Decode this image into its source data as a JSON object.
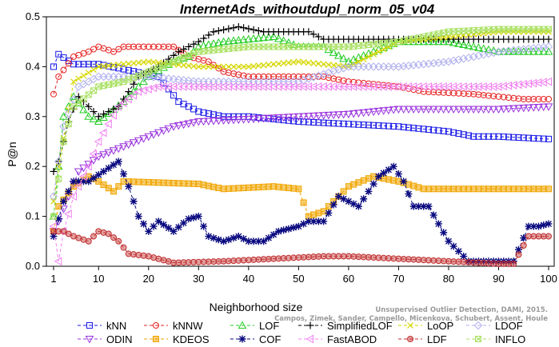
{
  "chart_data": {
    "type": "line",
    "title": "InternetAds_withoutdupl_norm_05_v04",
    "xlabel": "Neighborhood size",
    "ylabel": "P@n",
    "xlim": [
      1,
      100
    ],
    "ylim": [
      0,
      0.5
    ],
    "xticks": [
      1,
      10,
      20,
      30,
      40,
      50,
      60,
      70,
      80,
      90,
      100
    ],
    "yticks": [
      0.0,
      0.1,
      0.2,
      0.3,
      0.4,
      0.5
    ],
    "watermark_lines": [
      "Unsupervised Outlier Detection, DAMI, 2015.",
      "Campos, Zimek, Sander, Campello, Micenkova, Schubert, Assent, Houle"
    ],
    "legend_position": "bottom",
    "series": [
      {
        "name": "kNN",
        "color": "#1a1ae6",
        "marker": "square",
        "points": [
          [
            1,
            0.4
          ],
          [
            2,
            0.425
          ],
          [
            5,
            0.405
          ],
          [
            10,
            0.405
          ],
          [
            15,
            0.395
          ],
          [
            22,
            0.38
          ],
          [
            26,
            0.33
          ],
          [
            30,
            0.31
          ],
          [
            35,
            0.3
          ],
          [
            40,
            0.3
          ],
          [
            45,
            0.295
          ],
          [
            50,
            0.29
          ],
          [
            60,
            0.285
          ],
          [
            70,
            0.28
          ],
          [
            80,
            0.27
          ],
          [
            85,
            0.26
          ],
          [
            90,
            0.26
          ],
          [
            100,
            0.255
          ]
        ]
      },
      {
        "name": "kNNW",
        "color": "#e62020",
        "marker": "circle",
        "points": [
          [
            1,
            0.345
          ],
          [
            2,
            0.38
          ],
          [
            5,
            0.42
          ],
          [
            8,
            0.43
          ],
          [
            10,
            0.44
          ],
          [
            13,
            0.43
          ],
          [
            15,
            0.44
          ],
          [
            25,
            0.44
          ],
          [
            28,
            0.42
          ],
          [
            32,
            0.41
          ],
          [
            35,
            0.39
          ],
          [
            40,
            0.38
          ],
          [
            55,
            0.38
          ],
          [
            60,
            0.37
          ],
          [
            70,
            0.36
          ],
          [
            75,
            0.35
          ],
          [
            85,
            0.345
          ],
          [
            95,
            0.335
          ],
          [
            100,
            0.335
          ]
        ]
      },
      {
        "name": "LOF",
        "color": "#22cc22",
        "marker": "triangle",
        "points": [
          [
            1,
            0.1
          ],
          [
            2,
            0.2
          ],
          [
            3,
            0.3
          ],
          [
            5,
            0.34
          ],
          [
            8,
            0.3
          ],
          [
            10,
            0.29
          ],
          [
            15,
            0.33
          ],
          [
            20,
            0.38
          ],
          [
            25,
            0.41
          ],
          [
            28,
            0.42
          ],
          [
            30,
            0.44
          ],
          [
            35,
            0.45
          ],
          [
            45,
            0.46
          ],
          [
            50,
            0.44
          ],
          [
            55,
            0.44
          ],
          [
            60,
            0.41
          ],
          [
            65,
            0.43
          ],
          [
            70,
            0.45
          ],
          [
            80,
            0.45
          ],
          [
            90,
            0.43
          ],
          [
            100,
            0.43
          ]
        ]
      },
      {
        "name": "SimplifiedLOF",
        "color": "#000000",
        "marker": "plus",
        "points": [
          [
            1,
            0.19
          ],
          [
            2,
            0.21
          ],
          [
            4,
            0.29
          ],
          [
            6,
            0.34
          ],
          [
            8,
            0.32
          ],
          [
            10,
            0.3
          ],
          [
            14,
            0.32
          ],
          [
            18,
            0.38
          ],
          [
            22,
            0.4
          ],
          [
            26,
            0.43
          ],
          [
            30,
            0.45
          ],
          [
            33,
            0.47
          ],
          [
            38,
            0.48
          ],
          [
            43,
            0.47
          ],
          [
            48,
            0.47
          ],
          [
            52,
            0.47
          ],
          [
            55,
            0.455
          ],
          [
            70,
            0.455
          ],
          [
            80,
            0.455
          ],
          [
            100,
            0.455
          ]
        ]
      },
      {
        "name": "LoOP",
        "color": "#d6d600",
        "marker": "x",
        "points": [
          [
            1,
            0.13
          ],
          [
            2,
            0.2
          ],
          [
            5,
            0.37
          ],
          [
            10,
            0.4
          ],
          [
            20,
            0.41
          ],
          [
            30,
            0.4
          ],
          [
            40,
            0.4
          ],
          [
            50,
            0.41
          ],
          [
            60,
            0.4
          ],
          [
            70,
            0.45
          ],
          [
            80,
            0.46
          ],
          [
            90,
            0.47
          ],
          [
            100,
            0.47
          ]
        ]
      },
      {
        "name": "LDOF",
        "color": "#b0b0ee",
        "marker": "diamond",
        "points": [
          [
            1,
            0.14
          ],
          [
            3,
            0.28
          ],
          [
            6,
            0.36
          ],
          [
            10,
            0.38
          ],
          [
            20,
            0.38
          ],
          [
            30,
            0.37
          ],
          [
            40,
            0.37
          ],
          [
            50,
            0.37
          ],
          [
            60,
            0.4
          ],
          [
            70,
            0.4
          ],
          [
            80,
            0.41
          ],
          [
            85,
            0.42
          ],
          [
            90,
            0.43
          ],
          [
            100,
            0.44
          ]
        ]
      },
      {
        "name": "ODIN",
        "color": "#9933dd",
        "marker": "tri-down",
        "points": [
          [
            1,
            0.07
          ],
          [
            2,
            0.09
          ],
          [
            4,
            0.14
          ],
          [
            6,
            0.19
          ],
          [
            10,
            0.22
          ],
          [
            15,
            0.24
          ],
          [
            20,
            0.26
          ],
          [
            25,
            0.28
          ],
          [
            30,
            0.29
          ],
          [
            40,
            0.295
          ],
          [
            50,
            0.3
          ],
          [
            60,
            0.305
          ],
          [
            70,
            0.315
          ],
          [
            80,
            0.315
          ],
          [
            90,
            0.315
          ],
          [
            100,
            0.32
          ]
        ]
      },
      {
        "name": "KDEOS",
        "color": "#f0a500",
        "marker": "square-filled",
        "points": [
          [
            1,
            0.07
          ],
          [
            2,
            0.12
          ],
          [
            5,
            0.16
          ],
          [
            8,
            0.18
          ],
          [
            10,
            0.17
          ],
          [
            13,
            0.15
          ],
          [
            15,
            0.17
          ],
          [
            30,
            0.165
          ],
          [
            35,
            0.155
          ],
          [
            45,
            0.16
          ],
          [
            50,
            0.155
          ],
          [
            52,
            0.1
          ],
          [
            55,
            0.11
          ],
          [
            60,
            0.16
          ],
          [
            65,
            0.18
          ],
          [
            70,
            0.17
          ],
          [
            75,
            0.155
          ],
          [
            100,
            0.155
          ]
        ]
      },
      {
        "name": "COF",
        "color": "#0a0a80",
        "marker": "asterisk",
        "points": [
          [
            1,
            0.06
          ],
          [
            3,
            0.13
          ],
          [
            5,
            0.17
          ],
          [
            8,
            0.17
          ],
          [
            11,
            0.19
          ],
          [
            14,
            0.21
          ],
          [
            16,
            0.16
          ],
          [
            18,
            0.1
          ],
          [
            20,
            0.07
          ],
          [
            22,
            0.09
          ],
          [
            25,
            0.07
          ],
          [
            28,
            0.095
          ],
          [
            30,
            0.1
          ],
          [
            32,
            0.06
          ],
          [
            35,
            0.05
          ],
          [
            38,
            0.06
          ],
          [
            40,
            0.05
          ],
          [
            43,
            0.05
          ],
          [
            46,
            0.07
          ],
          [
            50,
            0.08
          ],
          [
            52,
            0.09
          ],
          [
            55,
            0.09
          ],
          [
            58,
            0.14
          ],
          [
            62,
            0.12
          ],
          [
            66,
            0.18
          ],
          [
            69,
            0.2
          ],
          [
            71,
            0.17
          ],
          [
            73,
            0.12
          ],
          [
            76,
            0.12
          ],
          [
            80,
            0.05
          ],
          [
            84,
            0.01
          ],
          [
            90,
            0.01
          ],
          [
            93,
            0.01
          ],
          [
            96,
            0.08
          ],
          [
            98,
            0.08
          ],
          [
            100,
            0.085
          ]
        ]
      },
      {
        "name": "FastABOD",
        "color": "#f080f0",
        "marker": "tri-left",
        "points": [
          [
            1,
            0.08
          ],
          [
            2,
            0.01
          ],
          [
            3,
            0.07
          ],
          [
            5,
            0.14
          ],
          [
            8,
            0.2
          ],
          [
            10,
            0.25
          ],
          [
            14,
            0.32
          ],
          [
            18,
            0.35
          ],
          [
            22,
            0.36
          ],
          [
            30,
            0.36
          ],
          [
            40,
            0.36
          ],
          [
            50,
            0.36
          ],
          [
            60,
            0.36
          ],
          [
            70,
            0.36
          ],
          [
            80,
            0.36
          ],
          [
            90,
            0.36
          ],
          [
            100,
            0.37
          ]
        ]
      },
      {
        "name": "LDF",
        "color": "#c03030",
        "marker": "circle-filled",
        "points": [
          [
            1,
            0.07
          ],
          [
            3,
            0.07
          ],
          [
            5,
            0.06
          ],
          [
            8,
            0.05
          ],
          [
            10,
            0.07
          ],
          [
            12,
            0.065
          ],
          [
            14,
            0.05
          ],
          [
            16,
            0.025
          ],
          [
            20,
            0.02
          ],
          [
            25,
            0.007
          ],
          [
            35,
            0.01
          ],
          [
            45,
            0.015
          ],
          [
            55,
            0.02
          ],
          [
            60,
            0.02
          ],
          [
            70,
            0.015
          ],
          [
            80,
            0.01
          ],
          [
            90,
            0.005
          ],
          [
            93,
            0.005
          ],
          [
            96,
            0.06
          ],
          [
            100,
            0.06
          ]
        ]
      },
      {
        "name": "INFLO",
        "color": "#a8e060",
        "marker": "x-box",
        "points": [
          [
            1,
            0.1
          ],
          [
            3,
            0.25
          ],
          [
            5,
            0.32
          ],
          [
            10,
            0.36
          ],
          [
            15,
            0.37
          ],
          [
            20,
            0.39
          ],
          [
            25,
            0.41
          ],
          [
            30,
            0.43
          ],
          [
            40,
            0.44
          ],
          [
            50,
            0.44
          ],
          [
            60,
            0.44
          ],
          [
            70,
            0.45
          ],
          [
            80,
            0.47
          ],
          [
            90,
            0.475
          ],
          [
            100,
            0.475
          ]
        ]
      }
    ]
  }
}
